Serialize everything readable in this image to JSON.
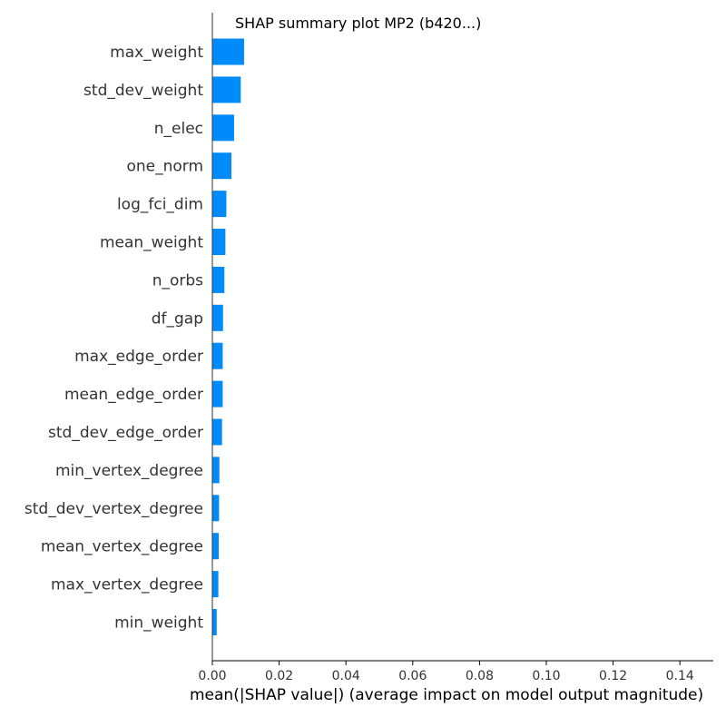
{
  "chart_data": {
    "type": "bar",
    "orientation": "horizontal",
    "title": "SHAP summary plot MP2 (b420...)",
    "xlabel": "mean(|SHAP value|) (average impact on model output magnitude)",
    "ylabel": "",
    "xlim": [
      0,
      0.15
    ],
    "xticks": [
      "0.00",
      "0.02",
      "0.04",
      "0.06",
      "0.08",
      "0.10",
      "0.12",
      "0.14"
    ],
    "xtick_values": [
      0,
      0.02,
      0.04,
      0.06,
      0.08,
      0.1,
      0.12,
      0.14
    ],
    "grid": false,
    "bar_color": "#008bfb",
    "categories": [
      "max_weight",
      "std_dev_weight",
      "n_elec",
      "one_norm",
      "log_fci_dim",
      "mean_weight",
      "n_orbs",
      "df_gap",
      "max_edge_order",
      "mean_edge_order",
      "std_dev_edge_order",
      "min_vertex_degree",
      "std_dev_vertex_degree",
      "mean_vertex_degree",
      "max_vertex_degree",
      "min_weight"
    ],
    "values": [
      0.0095,
      0.0085,
      0.0065,
      0.0057,
      0.0042,
      0.0039,
      0.0036,
      0.0032,
      0.0031,
      0.0031,
      0.0029,
      0.0021,
      0.002,
      0.0019,
      0.0018,
      0.0013
    ]
  }
}
